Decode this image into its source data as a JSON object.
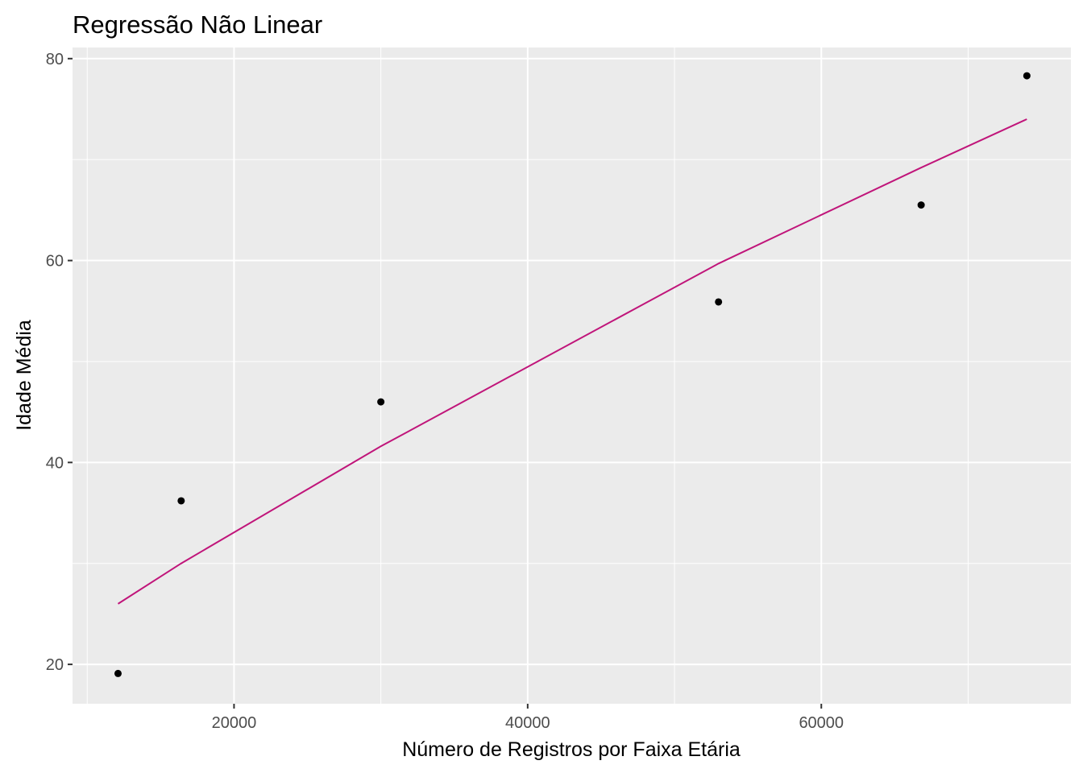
{
  "chart_data": {
    "type": "scatter",
    "title": "Regressão Não Linear",
    "xlabel": "Número de Registros por Faixa Etária",
    "ylabel": "Idade Média",
    "xlim": [
      9000,
      77000
    ],
    "ylim": [
      16.1,
      81.1
    ],
    "x_ticks": [
      20000,
      40000,
      60000
    ],
    "y_ticks": [
      20,
      40,
      60,
      80
    ],
    "grid": true,
    "colors": {
      "panel": "#ebebeb",
      "grid": "#ffffff",
      "points": "#000000",
      "fit_line": "#c0157a"
    },
    "series": [
      {
        "type": "scatter",
        "x": [
          12100,
          16400,
          30000,
          53000,
          66800,
          74000
        ],
        "y": [
          19.1,
          36.2,
          46.0,
          55.9,
          65.5,
          78.3
        ]
      },
      {
        "type": "line",
        "x": [
          12100,
          16400,
          30000,
          53000,
          66800,
          74000
        ],
        "y": [
          26.0,
          30.0,
          41.6,
          59.7,
          69.2,
          74.0
        ]
      }
    ]
  }
}
